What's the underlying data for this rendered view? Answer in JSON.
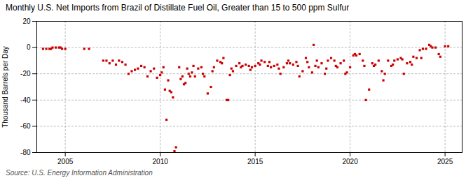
{
  "chart_data": {
    "type": "scatter",
    "title": "Monthly U.S. Net Imports from Brazil of Distillate Fuel Oil, Greater than 15 to 500 ppm Sulfur",
    "ylabel": "Thousand Barrels per Day",
    "source": "Source: U.S. Energy Information Administration",
    "color": "#cc0000",
    "marker": "square",
    "grid": true,
    "xlim": [
      2003.5,
      2025.9
    ],
    "xticks": [
      2005,
      2010,
      2015,
      2020,
      2025
    ],
    "ylim": [
      -80,
      20
    ],
    "yticks": [
      -80,
      -60,
      -40,
      -20,
      0,
      20
    ],
    "x": [
      2003.83,
      2004.0,
      2004.17,
      2004.25,
      2004.33,
      2004.5,
      2004.67,
      2004.75,
      2004.83,
      2005.0,
      2006.0,
      2006.25,
      2007.0,
      2007.17,
      2007.33,
      2007.5,
      2007.67,
      2007.83,
      2008.0,
      2008.17,
      2008.33,
      2008.5,
      2008.67,
      2008.83,
      2009.0,
      2009.17,
      2009.33,
      2009.5,
      2009.67,
      2009.83,
      2010.0,
      2010.08,
      2010.17,
      2010.25,
      2010.33,
      2010.42,
      2010.5,
      2010.58,
      2010.67,
      2010.75,
      2010.83,
      2011.0,
      2011.08,
      2011.17,
      2011.25,
      2011.33,
      2011.42,
      2011.5,
      2011.58,
      2011.67,
      2011.75,
      2011.83,
      2012.0,
      2012.17,
      2012.25,
      2012.33,
      2012.5,
      2012.67,
      2012.75,
      2012.83,
      2013.0,
      2013.17,
      2013.25,
      2013.33,
      2013.5,
      2013.58,
      2013.67,
      2013.75,
      2013.83,
      2014.0,
      2014.17,
      2014.25,
      2014.33,
      2014.5,
      2014.67,
      2014.75,
      2014.83,
      2015.0,
      2015.17,
      2015.25,
      2015.33,
      2015.5,
      2015.67,
      2015.75,
      2015.83,
      2016.0,
      2016.17,
      2016.25,
      2016.33,
      2016.5,
      2016.67,
      2016.75,
      2016.83,
      2017.0,
      2017.17,
      2017.25,
      2017.33,
      2017.5,
      2017.67,
      2017.75,
      2017.83,
      2018.0,
      2018.08,
      2018.17,
      2018.25,
      2018.33,
      2018.5,
      2018.67,
      2018.75,
      2018.83,
      2019.0,
      2019.17,
      2019.25,
      2019.33,
      2019.5,
      2019.67,
      2019.75,
      2019.83,
      2020.0,
      2020.17,
      2020.25,
      2020.33,
      2020.5,
      2020.67,
      2020.75,
      2020.83,
      2021.0,
      2021.17,
      2021.25,
      2021.33,
      2021.5,
      2021.67,
      2021.75,
      2021.83,
      2022.0,
      2022.17,
      2022.25,
      2022.33,
      2022.5,
      2022.67,
      2022.75,
      2022.83,
      2023.0,
      2023.17,
      2023.25,
      2023.33,
      2023.5,
      2023.67,
      2023.75,
      2023.83,
      2024.0,
      2024.17,
      2024.25,
      2024.33,
      2024.5,
      2024.67,
      2024.75,
      2025.0,
      2025.17
    ],
    "values": [
      -1,
      -1,
      -1,
      -1,
      0,
      0,
      0,
      0,
      -1,
      -1,
      -1,
      -1,
      -10,
      -10,
      -12,
      -10,
      -13,
      -10,
      -11,
      -13,
      -20,
      -18,
      -17,
      -16,
      -14,
      -15,
      -22,
      -18,
      -16,
      -23,
      -21,
      -19,
      -15,
      -32,
      -55,
      -25,
      -33,
      -34,
      -38,
      -79,
      -76,
      -15,
      -24,
      -22,
      -28,
      -27,
      -16,
      -20,
      -22,
      -19,
      -14,
      -22,
      -16,
      -15,
      -20,
      -22,
      -35,
      -30,
      -18,
      -15,
      -10,
      -11,
      -12,
      -8,
      -40,
      -40,
      -21,
      -16,
      -18,
      -14,
      -12,
      -15,
      -14,
      -13,
      -14,
      -17,
      -15,
      -14,
      -12,
      -13,
      -10,
      -11,
      -14,
      -11,
      -15,
      -14,
      -13,
      -16,
      -20,
      -15,
      -12,
      -10,
      -12,
      -13,
      -11,
      -14,
      -22,
      -18,
      -8,
      -11,
      -15,
      -19,
      2,
      -14,
      -10,
      -15,
      -12,
      -20,
      -16,
      -10,
      -8,
      -10,
      -14,
      -15,
      -12,
      -10,
      -20,
      -19,
      -15,
      -6,
      -5,
      -6,
      -5,
      -10,
      -14,
      -40,
      -32,
      -12,
      -14,
      -13,
      -10,
      -18,
      -25,
      -20,
      -10,
      -14,
      -13,
      -10,
      -9,
      -8,
      -9,
      -20,
      -12,
      -11,
      -13,
      -7,
      -8,
      -2,
      -8,
      -1,
      -1,
      2,
      1,
      0,
      0,
      -5,
      -7,
      1,
      1
    ]
  }
}
